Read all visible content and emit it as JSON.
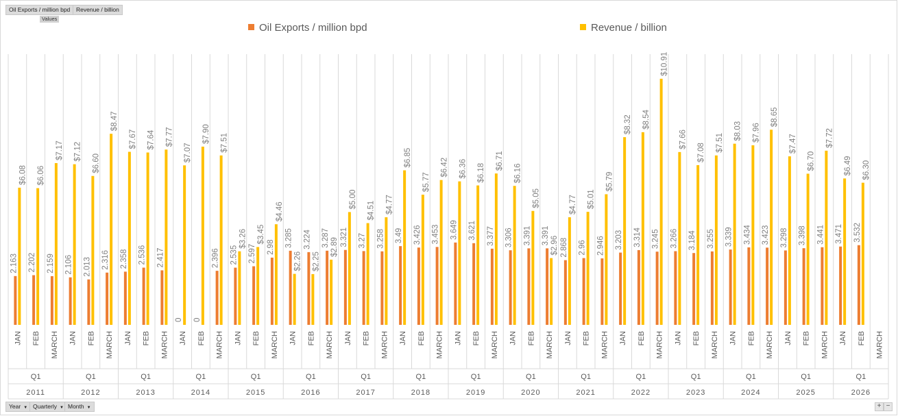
{
  "field_buttons_top": {
    "oil": "Oil Exports / million bpd",
    "revenue": "Revenue / billion",
    "values": "Values"
  },
  "field_buttons_bottom": [
    {
      "label": "Year"
    },
    {
      "label": "Quarterly"
    },
    {
      "label": "Month"
    }
  ],
  "zoom_controls": {
    "plus": "+",
    "minus": "−"
  },
  "chart_data": {
    "type": "bar",
    "legend_position": "top",
    "grid": false,
    "ylim": [
      0,
      12
    ],
    "quarter": "Q1",
    "months": [
      "JAN",
      "FEB",
      "MARCH"
    ],
    "years": [
      "2011",
      "2012",
      "2013",
      "2014",
      "2015",
      "2016",
      "2017",
      "2018",
      "2019",
      "2020",
      "2021",
      "2022",
      "2023",
      "2024",
      "2025",
      "2026"
    ],
    "series": [
      {
        "name": "Oil Exports / million bpd",
        "color": "#ED7D31",
        "values": [
          2.163,
          2.202,
          2.159,
          2.106,
          2.013,
          2.316,
          2.358,
          2.536,
          2.417,
          0,
          0,
          2.396,
          2.535,
          2.597,
          2.98,
          3.285,
          3.224,
          3.287,
          3.321,
          3.27,
          3.258,
          3.49,
          3.426,
          3.453,
          3.649,
          3.621,
          3.377,
          3.306,
          3.391,
          3.391,
          2.868,
          2.96,
          2.946,
          3.203,
          3.314,
          3.245,
          3.266,
          3.184,
          3.255,
          3.339,
          3.434,
          3.423,
          3.298,
          3.398,
          3.441,
          3.471,
          3.532,
          null
        ],
        "labels": [
          "2.163",
          "2.202",
          "2.159",
          "2.106",
          "2.013",
          "2.316",
          "2.358",
          "2.536",
          "2.417",
          "0",
          "0",
          "2.396",
          "2.535",
          "2.597",
          "2.98",
          "3.285",
          "3.224",
          "3.287",
          "3.321",
          "3.27",
          "3.258",
          "3.49",
          "3.426",
          "3.453",
          "3.649",
          "3.621",
          "3.377",
          "3.306",
          "3.391",
          "3.391",
          "2.868",
          "2.96",
          "2.946",
          "3.203",
          "3.314",
          "3.245",
          "3.266",
          "3.184",
          "3.255",
          "3.339",
          "3.434",
          "3.423",
          "3.298",
          "3.398",
          "3.441",
          "3.471",
          "3.532",
          null
        ]
      },
      {
        "name": "Revenue / billion",
        "color": "#FFC000",
        "values": [
          6.08,
          6.06,
          7.17,
          7.12,
          6.6,
          8.47,
          7.67,
          7.64,
          7.77,
          7.07,
          7.9,
          7.51,
          3.26,
          3.45,
          4.46,
          2.26,
          2.25,
          2.89,
          5.0,
          4.51,
          4.77,
          6.85,
          5.77,
          6.42,
          6.36,
          6.18,
          6.71,
          6.16,
          5.05,
          2.96,
          4.77,
          5.01,
          5.79,
          8.32,
          8.54,
          10.91,
          7.66,
          7.08,
          7.51,
          8.03,
          7.96,
          8.65,
          7.47,
          6.7,
          7.72,
          6.49,
          6.3,
          null
        ],
        "labels": [
          "$6.08",
          "$6.06",
          "$7.17",
          "$7.12",
          "$6.60",
          "$8.47",
          "$7.67",
          "$7.64",
          "$7.77",
          "$7.07",
          "$7.90",
          "$7.51",
          "$3.26",
          "$3.45",
          "$4.46",
          "$2.26",
          "$2.25",
          "$2.89",
          "$5.00",
          "$4.51",
          "$4.77",
          "$6.85",
          "$5.77",
          "$6.42",
          "$6.36",
          "$6.18",
          "$6.71",
          "$6.16",
          "$5.05",
          "$2.96",
          "$4.77",
          "$5.01",
          "$5.79",
          "$8.32",
          "$8.54",
          "$10.91",
          "$7.66",
          "$7.08",
          "$7.51",
          "$8.03",
          "$7.96",
          "$8.65",
          "$7.47",
          "$6.70",
          "$7.72",
          "$6.49",
          "$6.30",
          null
        ]
      }
    ]
  }
}
